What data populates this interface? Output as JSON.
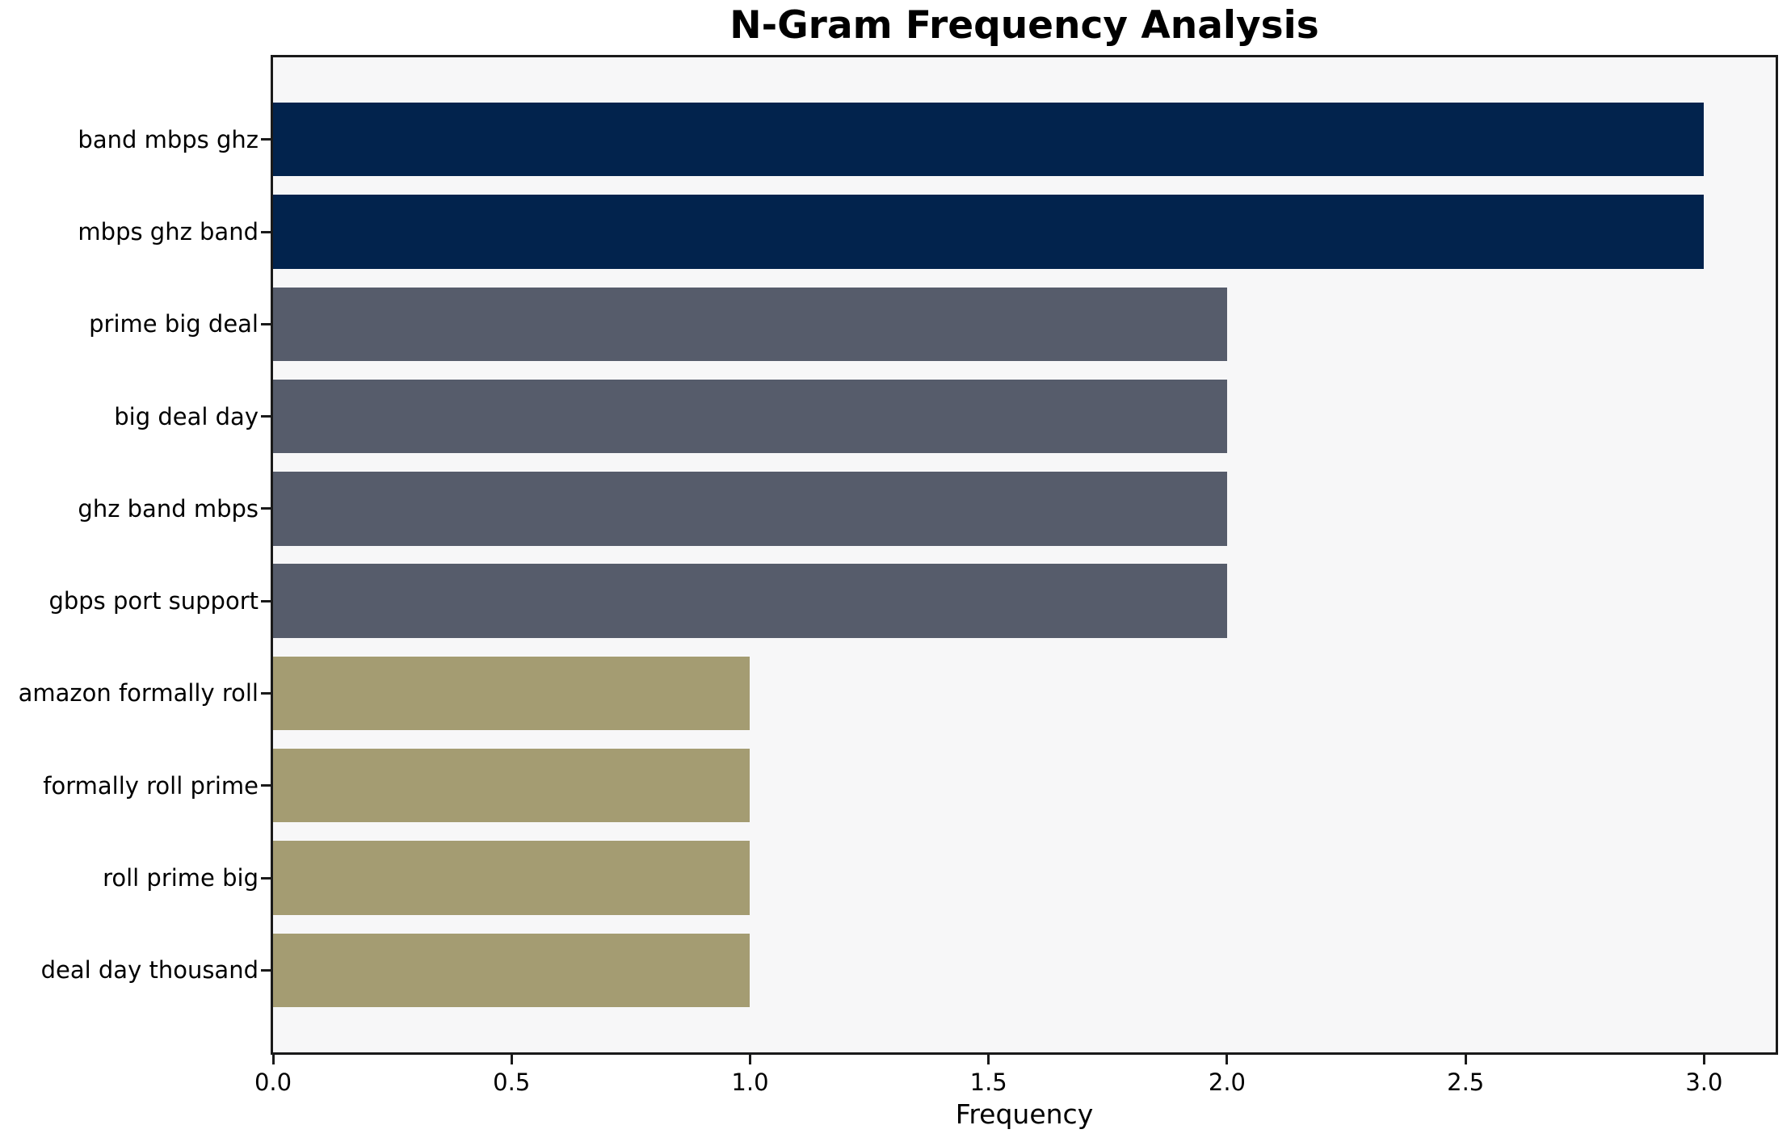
{
  "figure": {
    "background": "#ffffff",
    "plot_background": "#f7f7f8",
    "spine_color": "#1a1a1a"
  },
  "chart_data": {
    "type": "bar",
    "orientation": "horizontal",
    "title": "N-Gram Frequency Analysis",
    "xlabel": "Frequency",
    "ylabel": "",
    "categories": [
      "band mbps ghz",
      "mbps ghz band",
      "prime big deal",
      "big deal day",
      "ghz band mbps",
      "gbps port support",
      "amazon formally roll",
      "formally roll prime",
      "roll prime big",
      "deal day thousand"
    ],
    "values": [
      3,
      3,
      2,
      2,
      2,
      2,
      1,
      1,
      1,
      1
    ],
    "bar_colors": [
      "#02234d",
      "#02234d",
      "#565c6b",
      "#565c6b",
      "#565c6b",
      "#565c6b",
      "#a49c72",
      "#a49c72",
      "#a49c72",
      "#a49c72"
    ],
    "color_meaning": {
      "#02234d": "frequency 3",
      "#565c6b": "frequency 2",
      "#a49c72": "frequency 1"
    },
    "xlim": [
      0,
      3.15
    ],
    "x_ticks": [
      {
        "value": 0,
        "label": "0.0"
      },
      {
        "value": 0.5,
        "label": "0.5"
      },
      {
        "value": 1,
        "label": "1.0"
      },
      {
        "value": 1.5,
        "label": "1.5"
      },
      {
        "value": 2,
        "label": "2.0"
      },
      {
        "value": 2.5,
        "label": "2.5"
      },
      {
        "value": 3,
        "label": "3.0"
      }
    ],
    "bar_height_fraction": 0.8,
    "grid": false,
    "legend": "none"
  }
}
